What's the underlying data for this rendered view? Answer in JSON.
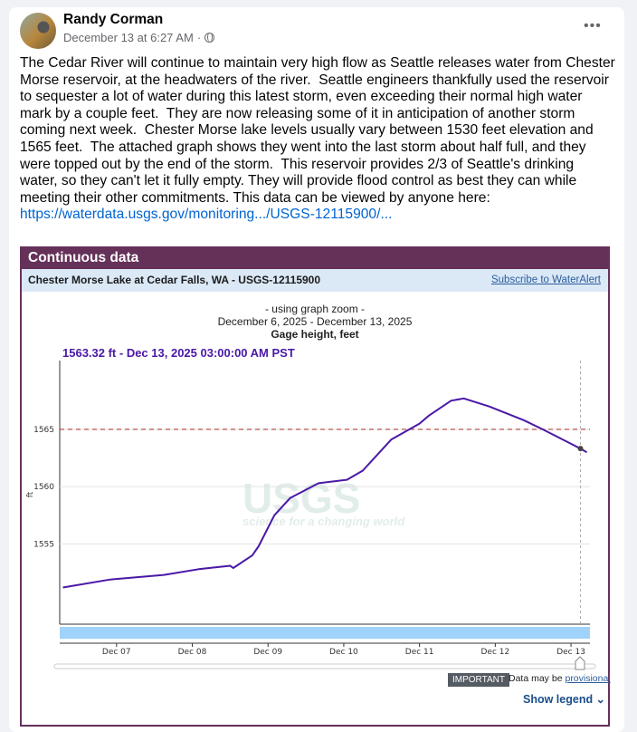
{
  "post": {
    "author": "Randy Corman",
    "timestamp": "December 13 at 6:27 AM",
    "separator": "·",
    "privacy_icon": "globe-icon",
    "more_icon": "•••",
    "text_lines": [
      "The Cedar River will continue to maintain very high flow as Seattle releases water from Chester",
      "Morse reservoir, at the headwaters of the river.  Seattle engineers thankfully used the reservoir",
      "to sequester a lot of water during this latest storm, even exceeding their normal high water",
      "mark by a couple feet.  They are now releasing some of it in anticipation of another storm",
      "coming next week.  Chester Morse lake levels usually vary between 1530 feet elevation and",
      "1565 feet.  The attached graph shows they went into the last storm about half full, and they",
      "were topped out by the end of the storm.  This reservoir provides 2/3 of Seattle's drinking",
      "water, so they can't let it fully empty. They will provide flood control as best they can while",
      "meeting their other commitments. This data can be viewed by anyone here:"
    ],
    "link": "https://waterdata.usgs.gov/monitoring.../USGS-12115900/..."
  },
  "usgs": {
    "header": "Continuous data",
    "site": "Chester Morse Lake at Cedar Falls, WA - USGS-12115900",
    "subscribe": "Subscribe to WaterAlert",
    "zoom_note": "- using graph zoom -",
    "date_range": "December 6, 2025 - December 13, 2025",
    "readout": "1563.32 ft - Dec 13, 2025 03:00:00 AM PST",
    "important": "IMPORTANT",
    "provisional_text": "Data may be",
    "provisional_link": "provisional",
    "show_legend": "Show legend ⌄",
    "watermark": "USGS",
    "watermark_tagline": "science for a changing world",
    "colors": {
      "header": "#653159",
      "series": "#4a18a6",
      "threshold": "#b0413e",
      "scrubber": "#9fd3fb"
    }
  },
  "chart_data": {
    "type": "line",
    "title": "Gage height, feet",
    "xlabel": "",
    "ylabel": "ft",
    "xlim": [
      "2025-12-06T06:00",
      "2025-12-13T06:00"
    ],
    "ylim": [
      1548,
      1571
    ],
    "x_ticks": [
      "Dec 07",
      "Dec 08",
      "Dec 09",
      "Dec 10",
      "Dec 11",
      "Dec 12",
      "Dec 13"
    ],
    "x_tick_dates": [
      "2025-12-07T00:00",
      "2025-12-08T00:00",
      "2025-12-09T00:00",
      "2025-12-10T00:00",
      "2025-12-11T00:00",
      "2025-12-12T00:00",
      "2025-12-13T00:00"
    ],
    "y_ticks": [
      1555,
      1560,
      1565
    ],
    "grid": "horizontal",
    "threshold": 1565,
    "cursor": {
      "x": "2025-12-13T03:00",
      "y": 1563.32
    },
    "series": [
      {
        "x": [
          "2025-12-06T07:00",
          "2025-12-06T22:00",
          "2025-12-07T15:00",
          "2025-12-08T02:00",
          "2025-12-08T12:00",
          "2025-12-08T13:00",
          "2025-12-08T19:00",
          "2025-12-08T21:00",
          "2025-12-09T02:00",
          "2025-12-09T07:00",
          "2025-12-09T16:00",
          "2025-12-10T01:00",
          "2025-12-10T06:00",
          "2025-12-10T15:00",
          "2025-12-11T00:00",
          "2025-12-11T03:00",
          "2025-12-11T10:00",
          "2025-12-11T14:00",
          "2025-12-11T22:00",
          "2025-12-12T09:00",
          "2025-12-12T15:00",
          "2025-12-13T03:00",
          "2025-12-13T05:00"
        ],
        "values": [
          1551.2,
          1551.9,
          1552.3,
          1552.8,
          1553.1,
          1552.9,
          1554.0,
          1554.8,
          1557.5,
          1559.0,
          1560.3,
          1560.6,
          1561.4,
          1564.1,
          1565.5,
          1566.2,
          1567.5,
          1567.7,
          1567.0,
          1565.8,
          1565.0,
          1563.32,
          1563.0
        ]
      }
    ]
  }
}
